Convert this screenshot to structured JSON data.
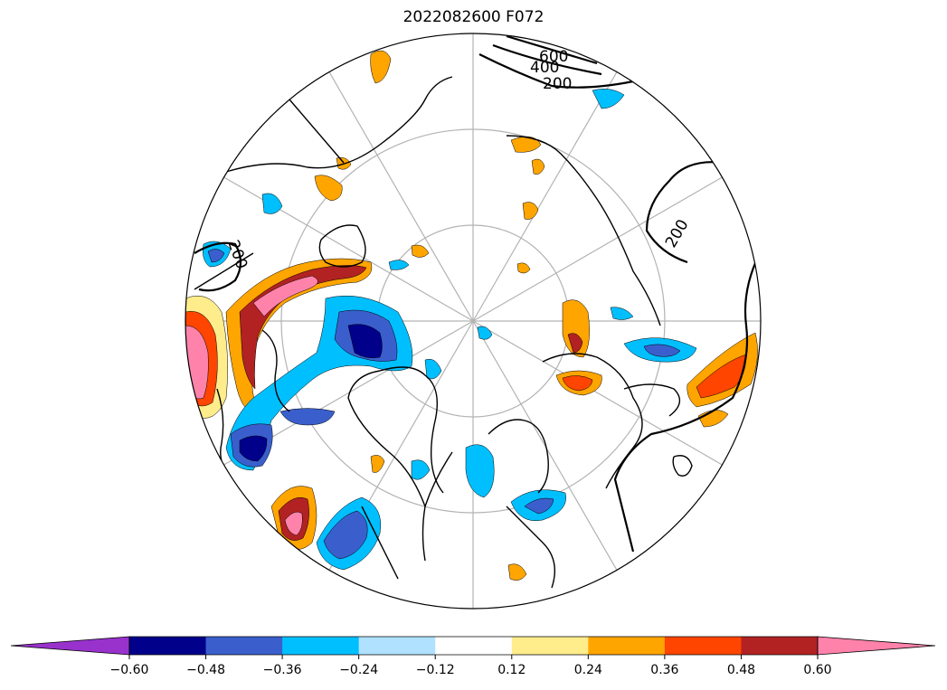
{
  "title": "2022082600 F072",
  "contour_labels": [
    "600",
    "400",
    "200",
    "200",
    "200"
  ],
  "colorbar": {
    "colors": [
      "#9932cc",
      "#00008b",
      "#3a5fcd",
      "#00bfff",
      "#b0e2ff",
      "#ffffff",
      "#ffec8b",
      "#ffa500",
      "#ff4500",
      "#b22222",
      "#ff82ab"
    ],
    "ticks": [
      "−0.60",
      "−0.48",
      "−0.36",
      "−0.24",
      "−0.12",
      "0.12",
      "0.24",
      "0.36",
      "0.48",
      "0.60"
    ],
    "extend": "both"
  },
  "colors": {
    "land": "#000000",
    "grid": "#b3b3b3",
    "background": "#ffffff"
  }
}
